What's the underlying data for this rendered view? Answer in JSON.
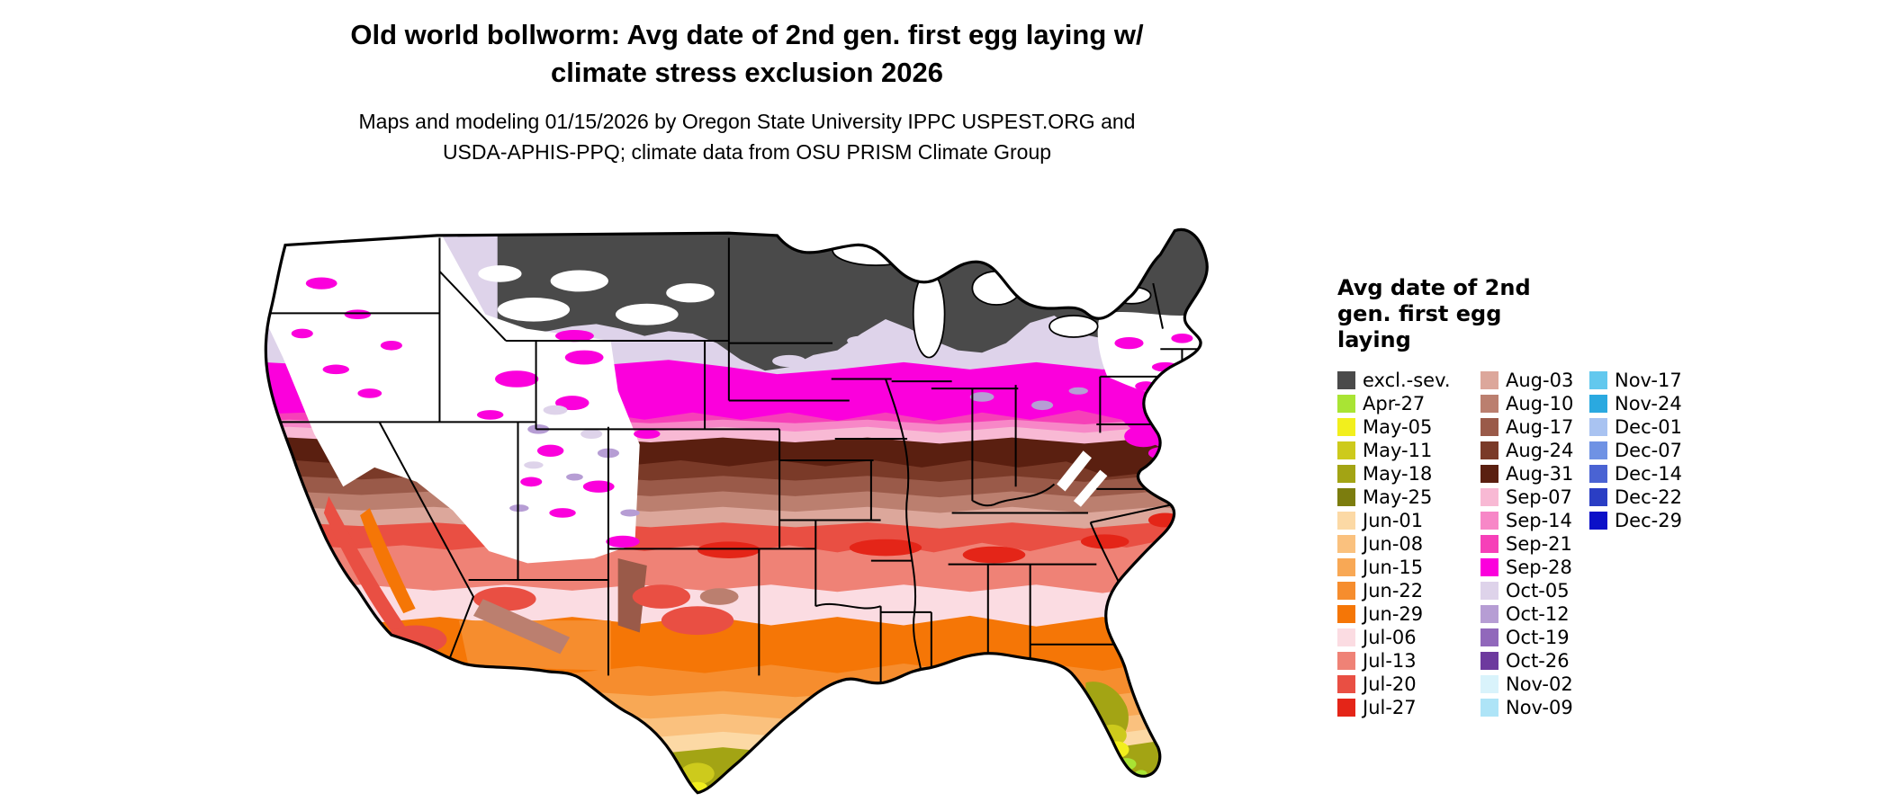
{
  "title": {
    "line1": "Old world bollworm: Avg date of 2nd gen. first egg laying w/",
    "line2": "climate stress exclusion 2026"
  },
  "subtitle": {
    "line1": "Maps and modeling 01/15/2026 by Oregon State University IPPC USPEST.ORG and",
    "line2": "USDA-APHIS-PPQ; climate data from OSU PRISM Climate Group"
  },
  "legend": {
    "title_lines": [
      "Avg date of 2nd",
      "gen. first egg",
      "laying"
    ],
    "columns": [
      [
        {
          "label": "excl.-sev.",
          "color": "excl"
        },
        {
          "label": "Apr-27",
          "color": "apr27"
        },
        {
          "label": "May-05",
          "color": "may05"
        },
        {
          "label": "May-11",
          "color": "may11"
        },
        {
          "label": "May-18",
          "color": "may18"
        },
        {
          "label": "May-25",
          "color": "may25"
        },
        {
          "label": "Jun-01",
          "color": "jun01"
        },
        {
          "label": "Jun-08",
          "color": "jun08"
        },
        {
          "label": "Jun-15",
          "color": "jun15"
        },
        {
          "label": "Jun-22",
          "color": "jun22"
        },
        {
          "label": "Jun-29",
          "color": "jun29"
        },
        {
          "label": "Jul-06",
          "color": "jul06"
        },
        {
          "label": "Jul-13",
          "color": "jul13"
        },
        {
          "label": "Jul-20",
          "color": "jul20"
        },
        {
          "label": "Jul-27",
          "color": "jul27"
        }
      ],
      [
        {
          "label": "Aug-03",
          "color": "aug03"
        },
        {
          "label": "Aug-10",
          "color": "aug10"
        },
        {
          "label": "Aug-17",
          "color": "aug17"
        },
        {
          "label": "Aug-24",
          "color": "aug24"
        },
        {
          "label": "Aug-31",
          "color": "aug31"
        },
        {
          "label": "Sep-07",
          "color": "sep07"
        },
        {
          "label": "Sep-14",
          "color": "sep14"
        },
        {
          "label": "Sep-21",
          "color": "sep21"
        },
        {
          "label": "Sep-28",
          "color": "sep28"
        },
        {
          "label": "Oct-05",
          "color": "oct05"
        },
        {
          "label": "Oct-12",
          "color": "oct12"
        },
        {
          "label": "Oct-19",
          "color": "oct19"
        },
        {
          "label": "Oct-26",
          "color": "oct26"
        },
        {
          "label": "Nov-02",
          "color": "nov02"
        },
        {
          "label": "Nov-09",
          "color": "nov09"
        }
      ],
      [
        {
          "label": "Nov-17",
          "color": "nov17"
        },
        {
          "label": "Nov-24",
          "color": "nov24"
        },
        {
          "label": "Dec-01",
          "color": "dec01"
        },
        {
          "label": "Dec-07",
          "color": "dec07"
        },
        {
          "label": "Dec-14",
          "color": "dec14"
        },
        {
          "label": "Dec-22",
          "color": "dec22"
        },
        {
          "label": "Dec-29",
          "color": "dec29"
        }
      ]
    ]
  },
  "colors": {
    "excl": "#4a4a4a",
    "apr27": "#a9e434",
    "may05": "#f2ef1d",
    "may11": "#cdca1c",
    "may18": "#a3a414",
    "may25": "#7c7d0e",
    "jun01": "#fcd9a5",
    "jun08": "#fac17e",
    "jun15": "#f8a855",
    "jun22": "#f68d2e",
    "jun29": "#f57606",
    "jul06": "#fbdce2",
    "jul13": "#ef8276",
    "jul20": "#e94f43",
    "jul27": "#e42518",
    "aug03": "#dca79b",
    "aug10": "#bb7f6f",
    "aug17": "#9a5a49",
    "aug24": "#7a3a28",
    "aug31": "#5a1f10",
    "sep07": "#f8b9d4",
    "sep14": "#f787c7",
    "sep21": "#f640b8",
    "sep28": "#fb00dc",
    "oct05": "#ded3ea",
    "oct12": "#b69dd4",
    "oct19": "#9168bb",
    "oct26": "#6d3a9e",
    "nov02": "#d9f3fb",
    "nov09": "#aee4f7",
    "nov17": "#62c8ee",
    "nov24": "#2aa9e0",
    "dec01": "#a9c3f1",
    "dec07": "#6f92e4",
    "dec14": "#4a63d3",
    "dec22": "#2a3ec4",
    "dec29": "#0b10c8",
    "map_background": "#ffffff",
    "state_border": "#000000"
  }
}
